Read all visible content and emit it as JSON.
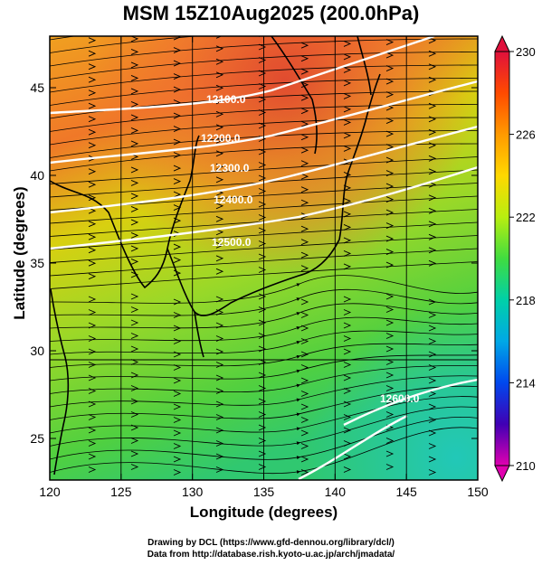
{
  "title": "MSM 15Z10Aug2025 (200.0hPa)",
  "x_axis": {
    "label": "Longitude (degrees)",
    "ticks": [
      "120",
      "125",
      "130",
      "135",
      "140",
      "145",
      "150"
    ]
  },
  "y_axis": {
    "label": "Latitude  (degrees)",
    "ticks": [
      "25",
      "30",
      "35",
      "40",
      "45"
    ]
  },
  "colorbar": {
    "ticks": [
      "230",
      "226",
      "222",
      "218",
      "214",
      "210"
    ],
    "colors": [
      "#e0003c",
      "#ff3c00",
      "#ff8c00",
      "#ffd200",
      "#c8f000",
      "#50dc32",
      "#00c8a0",
      "#00a0e6",
      "#0050f0",
      "#2800b4",
      "#8c00c8",
      "#e600a0"
    ]
  },
  "contours": {
    "labels": [
      "12100.0",
      "12200.0",
      "12300.0",
      "12400.0",
      "12500.0",
      "12600.0"
    ]
  },
  "credits": {
    "line1": "Drawing by DCL (https://www.gfd-dennou.org/library/dcl/)",
    "line2": "Data from http://database.rish.kyoto-u.ac.jp/arch/jmadata/"
  }
}
